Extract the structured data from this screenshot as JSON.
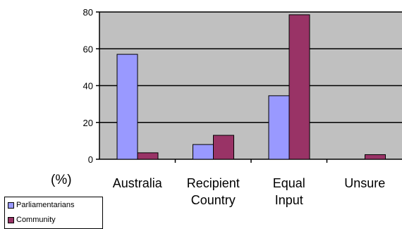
{
  "chart_data": {
    "type": "bar",
    "categories": [
      [
        "Australia"
      ],
      [
        "Recipient",
        "Country"
      ],
      [
        "Equal",
        "Input"
      ],
      [
        "Unsure"
      ]
    ],
    "series": [
      {
        "name": "Parliamentarians",
        "values": [
          57,
          8,
          34.5,
          0
        ],
        "color": "#9999ff"
      },
      {
        "name": "Community",
        "values": [
          3.5,
          13,
          78.5,
          2.5
        ],
        "color": "#993366"
      }
    ],
    "ylim": [
      0,
      80
    ],
    "yticks": [
      0,
      20,
      40,
      60,
      80
    ],
    "ylabel": "(%)",
    "grid": true,
    "plot_background": "#c0c0c0",
    "legend_position": "bottom-left"
  }
}
